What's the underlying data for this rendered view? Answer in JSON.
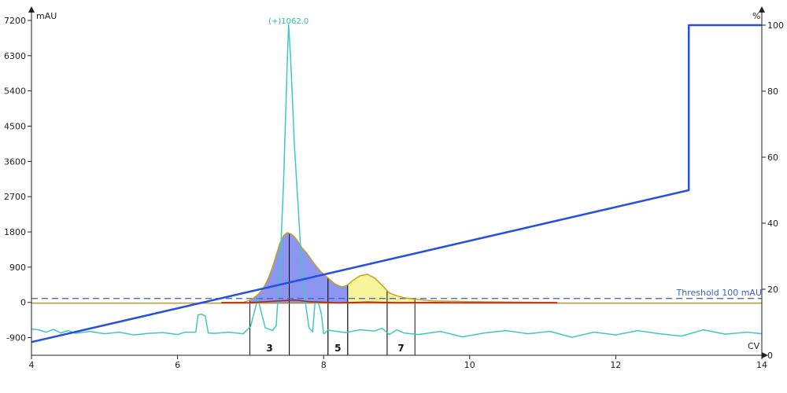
{
  "chart_data": {
    "type": "line",
    "title": "",
    "xlabel": "CV",
    "ylabel_left": "mAU",
    "ylabel_right": "%",
    "xlim": [
      4,
      14
    ],
    "ylim_left": [
      -1350,
      7200
    ],
    "ylim_right": [
      0,
      100
    ],
    "x_ticks": [
      4,
      6,
      8,
      10,
      12,
      14
    ],
    "y_left_ticks": [
      -900,
      0,
      900,
      1800,
      2700,
      3600,
      4500,
      5400,
      6300,
      7200
    ],
    "y_right_ticks": [
      0,
      20,
      40,
      60,
      80,
      100
    ],
    "grid": false,
    "threshold": {
      "label": "Threshold 100 mAU",
      "value": 100,
      "color": "#3a5fcd"
    },
    "peak_annotation": {
      "label": "(+)1062.0",
      "x": 7.52,
      "y": 7100,
      "color": "#2bb5b0"
    },
    "baseline": {
      "value": -20,
      "x_start": 4,
      "x_end": 14,
      "color": "#b8860b"
    },
    "fractions": [
      {
        "label": "3",
        "x_start": 6.99,
        "x_end": 7.53,
        "color": "#8c96f0"
      },
      {
        "label": "",
        "x_start": 7.53,
        "x_end": 8.06,
        "color": "#8c96f0"
      },
      {
        "label": "5",
        "x_start": 8.06,
        "x_end": 8.33,
        "color": "#8c96f0"
      },
      {
        "label": "",
        "x_start": 8.33,
        "x_end": 8.87,
        "color": "#f7f39a"
      },
      {
        "label": "7",
        "x_start": 8.87,
        "x_end": 9.25,
        "color": "#f7f39a"
      }
    ],
    "series": [
      {
        "axis": "left",
        "color": "#c9a020",
        "x": [
          6.6,
          6.9,
          7.0,
          7.1,
          7.15,
          7.2,
          7.25,
          7.3,
          7.35,
          7.4,
          7.45,
          7.5,
          7.55,
          7.6,
          7.65,
          7.7,
          7.75,
          7.8,
          7.85,
          7.9,
          7.95,
          8.0,
          8.05,
          8.1,
          8.15,
          8.2,
          8.25,
          8.3,
          8.33,
          8.4,
          8.5,
          8.6,
          8.7,
          8.8,
          8.9,
          9.0,
          9.1,
          9.25,
          9.5,
          10.0,
          11.0,
          11.2
        ],
        "values": [
          0,
          0,
          60,
          200,
          300,
          450,
          650,
          900,
          1200,
          1500,
          1700,
          1780,
          1750,
          1680,
          1550,
          1400,
          1300,
          1180,
          1050,
          920,
          810,
          720,
          640,
          560,
          480,
          430,
          400,
          420,
          450,
          560,
          680,
          720,
          620,
          440,
          240,
          170,
          120,
          80,
          40,
          20,
          0,
          0
        ]
      },
      {
        "axis": "left",
        "color": "#40c8c0",
        "x": [
          4.0,
          4.1,
          4.2,
          4.3,
          4.4,
          4.5,
          4.6,
          4.8,
          5.0,
          5.2,
          5.4,
          5.6,
          5.8,
          6.0,
          6.1,
          6.25,
          6.28,
          6.33,
          6.38,
          6.42,
          6.5,
          6.7,
          6.9,
          7.0,
          7.05,
          7.1,
          7.2,
          7.3,
          7.35,
          7.4,
          7.45,
          7.5,
          7.52,
          7.55,
          7.6,
          7.65,
          7.7,
          7.75,
          7.8,
          7.85,
          7.88,
          7.92,
          7.97,
          8.0,
          8.02,
          8.06,
          8.1,
          8.3,
          8.5,
          8.7,
          8.8,
          8.9,
          9.0,
          9.1,
          9.3,
          9.6,
          9.9,
          10.2,
          10.5,
          10.8,
          11.1,
          11.4,
          11.7,
          12.0,
          12.3,
          12.6,
          12.9,
          13.2,
          13.5,
          13.8,
          14.0
        ],
        "values": [
          -680,
          -700,
          -760,
          -690,
          -780,
          -720,
          -790,
          -740,
          -800,
          -760,
          -830,
          -790,
          -770,
          -820,
          -760,
          -760,
          -320,
          -300,
          -350,
          -780,
          -790,
          -760,
          -800,
          -620,
          -250,
          100,
          -650,
          -720,
          -600,
          800,
          3000,
          6000,
          7100,
          6200,
          4000,
          2500,
          900,
          0,
          -650,
          -750,
          -50,
          50,
          -300,
          -800,
          -780,
          -700,
          -720,
          -770,
          -700,
          -730,
          -660,
          -820,
          -700,
          -780,
          -820,
          -740,
          -880,
          -780,
          -720,
          -800,
          -740,
          -890,
          -760,
          -830,
          -720,
          -800,
          -860,
          -700,
          -810,
          -760,
          -800
        ]
      },
      {
        "axis": "left",
        "color": "#b02020",
        "x": [
          6.6,
          7.0,
          7.4,
          7.6,
          7.8,
          8.2,
          8.6,
          9.0,
          9.5,
          10.0,
          11.2
        ],
        "values": [
          -10,
          -5,
          40,
          60,
          20,
          -10,
          10,
          -5,
          0,
          -10,
          -10
        ]
      },
      {
        "axis": "right",
        "color": "#2750e0",
        "x": [
          4.0,
          13.0,
          13.0,
          14.0
        ],
        "values": [
          4,
          50,
          100,
          100
        ]
      }
    ]
  }
}
